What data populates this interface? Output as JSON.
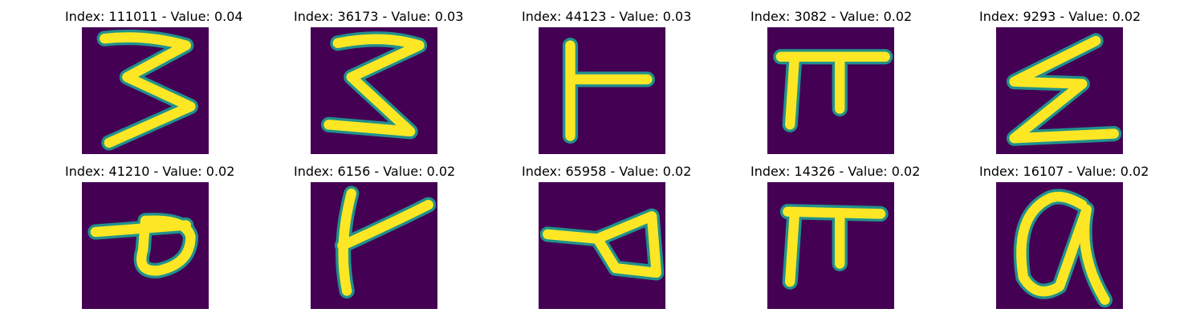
{
  "colors": {
    "background": "#440154",
    "stroke_core": "#fde725",
    "stroke_edge": "#21918c"
  },
  "panels": [
    {
      "title": "Index: 111011 - Value: 0.04",
      "glyph": "three"
    },
    {
      "title": "Index: 36173 - Value: 0.03",
      "glyph": "three"
    },
    {
      "title": "Index: 44123 - Value: 0.03",
      "glyph": "tee-right"
    },
    {
      "title": "Index: 3082 - Value: 0.02",
      "glyph": "pi"
    },
    {
      "title": "Index: 9293 - Value: 0.02",
      "glyph": "zee"
    },
    {
      "title": "Index: 41210 - Value: 0.02",
      "glyph": "p-loop"
    },
    {
      "title": "Index: 6156 - Value: 0.02",
      "glyph": "y-branch"
    },
    {
      "title": "Index: 65958 - Value: 0.02",
      "glyph": "triangle-tail"
    },
    {
      "title": "Index: 14326 - Value: 0.02",
      "glyph": "pi"
    },
    {
      "title": "Index: 16107 - Value: 0.02",
      "glyph": "at-loop"
    }
  ]
}
